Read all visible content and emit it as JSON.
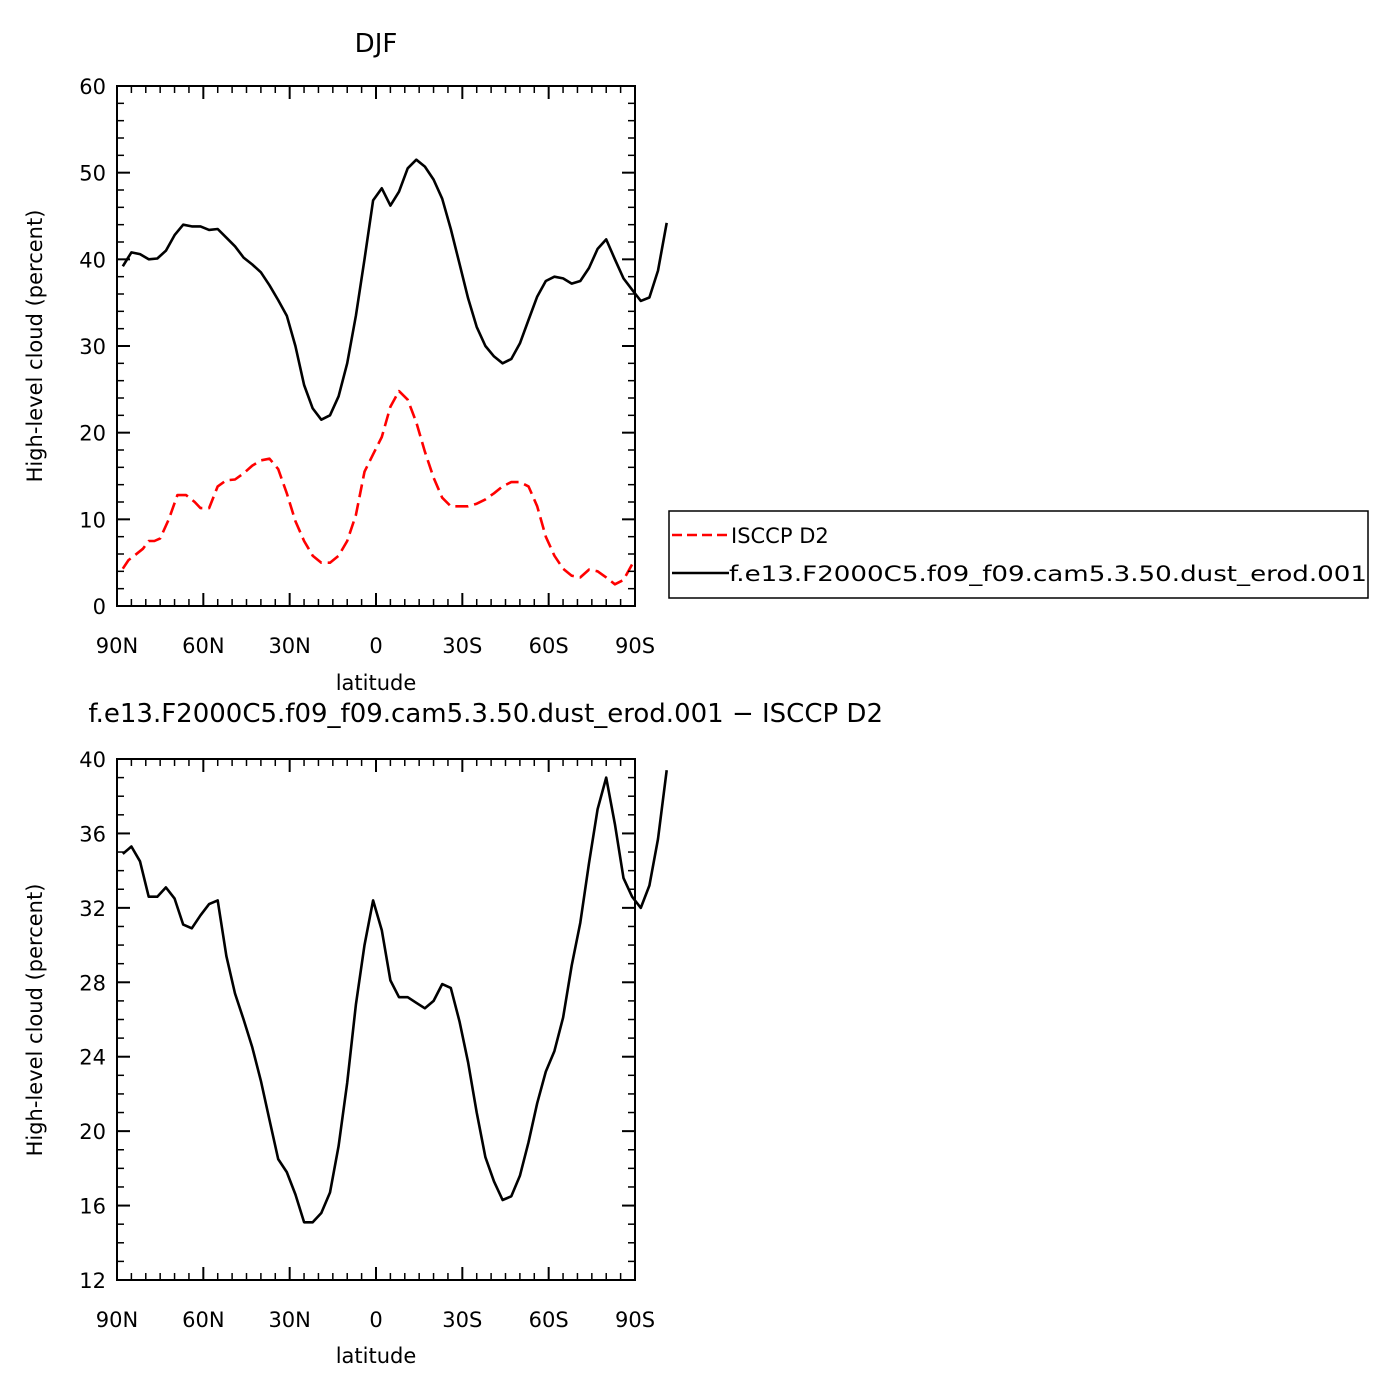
{
  "chart_data": [
    {
      "type": "line",
      "title": "DJF",
      "xlabel": "latitude",
      "ylabel": "High-level cloud (percent)",
      "xlim": [
        -90,
        90
      ],
      "ylim": [
        0,
        60
      ],
      "xticks": [
        {
          "v": -90,
          "label": "90N"
        },
        {
          "v": -60,
          "label": "60N"
        },
        {
          "v": -30,
          "label": "30N"
        },
        {
          "v": 0,
          "label": "0"
        },
        {
          "v": 30,
          "label": "30S"
        },
        {
          "v": 60,
          "label": "60S"
        },
        {
          "v": 90,
          "label": "90S"
        }
      ],
      "yticks": [
        {
          "v": 0,
          "label": "0"
        },
        {
          "v": 10,
          "label": "10"
        },
        {
          "v": 20,
          "label": "20"
        },
        {
          "v": 30,
          "label": "30"
        },
        {
          "v": 40,
          "label": "40"
        },
        {
          "v": 50,
          "label": "50"
        },
        {
          "v": 60,
          "label": "60"
        }
      ],
      "legend_position": "right",
      "series": [
        {
          "name": "ISCCP D2",
          "color": "#ff0000",
          "dash": "dashed",
          "points": [
            [
              -88,
              4.3
            ],
            [
              -86,
              5.3
            ],
            [
              -84,
              5.8
            ],
            [
              -81,
              6.6
            ],
            [
              -79,
              7.5
            ],
            [
              -77,
              7.5
            ],
            [
              -75,
              7.8
            ],
            [
              -72,
              10.0
            ],
            [
              -69,
              12.8
            ],
            [
              -66,
              12.8
            ],
            [
              -63,
              12.0
            ],
            [
              -61,
              11.3
            ],
            [
              -58,
              11.3
            ],
            [
              -55,
              13.8
            ],
            [
              -52,
              14.5
            ],
            [
              -49,
              14.6
            ],
            [
              -46,
              15.3
            ],
            [
              -43,
              16.2
            ],
            [
              -40,
              16.8
            ],
            [
              -37,
              17.0
            ],
            [
              -34,
              15.8
            ],
            [
              -31,
              13.0
            ],
            [
              -28,
              9.8
            ],
            [
              -25,
              7.5
            ],
            [
              -22,
              5.8
            ],
            [
              -19,
              5.0
            ],
            [
              -16,
              5.0
            ],
            [
              -13,
              5.8
            ],
            [
              -10,
              7.5
            ],
            [
              -7,
              10.5
            ],
            [
              -4,
              15.5
            ],
            [
              -1,
              17.5
            ],
            [
              2,
              19.5
            ],
            [
              5,
              23.0
            ],
            [
              8,
              24.8
            ],
            [
              11,
              23.8
            ],
            [
              14,
              21.2
            ],
            [
              17,
              17.8
            ],
            [
              20,
              14.8
            ],
            [
              23,
              12.5
            ],
            [
              26,
              11.5
            ],
            [
              29,
              11.5
            ],
            [
              32,
              11.5
            ],
            [
              35,
              11.8
            ],
            [
              38,
              12.3
            ],
            [
              41,
              13.0
            ],
            [
              44,
              13.8
            ],
            [
              47,
              14.3
            ],
            [
              50,
              14.3
            ],
            [
              53,
              13.8
            ],
            [
              56,
              11.5
            ],
            [
              59,
              8.0
            ],
            [
              62,
              5.8
            ],
            [
              65,
              4.3
            ],
            [
              68,
              3.5
            ],
            [
              71,
              3.3
            ],
            [
              74,
              4.2
            ],
            [
              77,
              4.0
            ],
            [
              80,
              3.3
            ],
            [
              83,
              2.5
            ],
            [
              86,
              3.0
            ],
            [
              89,
              4.8
            ]
          ]
        },
        {
          "name": "f.e13.F2000C5.f09_f09.cam5.3.50.dust_erod.001",
          "color": "#000000",
          "dash": "solid",
          "points": [
            [
              -88,
              39.2
            ],
            [
              -85,
              40.8
            ],
            [
              -82,
              40.6
            ],
            [
              -79,
              40.0
            ],
            [
              -76,
              40.1
            ],
            [
              -73,
              41.0
            ],
            [
              -70,
              42.8
            ],
            [
              -67,
              44.0
            ],
            [
              -64,
              43.8
            ],
            [
              -61,
              43.8
            ],
            [
              -58,
              43.4
            ],
            [
              -55,
              43.5
            ],
            [
              -52,
              42.5
            ],
            [
              -49,
              41.5
            ],
            [
              -46,
              40.2
            ],
            [
              -43,
              39.4
            ],
            [
              -40,
              38.5
            ],
            [
              -37,
              37.0
            ],
            [
              -34,
              35.3
            ],
            [
              -31,
              33.5
            ],
            [
              -28,
              30.0
            ],
            [
              -25,
              25.5
            ],
            [
              -22,
              22.8
            ],
            [
              -19,
              21.5
            ],
            [
              -16,
              22.0
            ],
            [
              -13,
              24.2
            ],
            [
              -10,
              28.0
            ],
            [
              -7,
              33.5
            ],
            [
              -4,
              40.0
            ],
            [
              -1,
              46.8
            ],
            [
              2,
              48.2
            ],
            [
              5,
              46.2
            ],
            [
              8,
              47.8
            ],
            [
              11,
              50.5
            ],
            [
              14,
              51.5
            ],
            [
              17,
              50.7
            ],
            [
              20,
              49.2
            ],
            [
              23,
              47.0
            ],
            [
              26,
              43.5
            ],
            [
              29,
              39.5
            ],
            [
              32,
              35.5
            ],
            [
              35,
              32.2
            ],
            [
              38,
              30.0
            ],
            [
              41,
              28.8
            ],
            [
              44,
              28.0
            ],
            [
              47,
              28.5
            ],
            [
              50,
              30.3
            ],
            [
              53,
              33.0
            ],
            [
              56,
              35.7
            ],
            [
              59,
              37.5
            ],
            [
              62,
              38.0
            ],
            [
              65,
              37.8
            ],
            [
              68,
              37.2
            ],
            [
              71,
              37.5
            ],
            [
              74,
              39.0
            ],
            [
              77,
              41.2
            ],
            [
              80,
              42.3
            ],
            [
              83,
              40.0
            ],
            [
              86,
              37.8
            ],
            [
              89,
              36.5
            ],
            [
              92,
              35.2
            ],
            [
              95,
              35.6
            ],
            [
              98,
              38.7
            ],
            [
              101,
              44.2
            ]
          ]
        }
      ]
    },
    {
      "type": "line",
      "title": "f.e13.F2000C5.f09_f09.cam5.3.50.dust_erod.001 − ISCCP D2",
      "xlabel": "latitude",
      "ylabel": "High-level cloud (percent)",
      "xlim": [
        -90,
        90
      ],
      "ylim": [
        12,
        40
      ],
      "xticks": [
        {
          "v": -90,
          "label": "90N"
        },
        {
          "v": -60,
          "label": "60N"
        },
        {
          "v": -30,
          "label": "30N"
        },
        {
          "v": 0,
          "label": "0"
        },
        {
          "v": 30,
          "label": "30S"
        },
        {
          "v": 60,
          "label": "60S"
        },
        {
          "v": 90,
          "label": "90S"
        }
      ],
      "yticks": [
        {
          "v": 12,
          "label": "12"
        },
        {
          "v": 16,
          "label": "16"
        },
        {
          "v": 20,
          "label": "20"
        },
        {
          "v": 24,
          "label": "24"
        },
        {
          "v": 28,
          "label": "28"
        },
        {
          "v": 32,
          "label": "32"
        },
        {
          "v": 36,
          "label": "36"
        },
        {
          "v": 40,
          "label": "40"
        }
      ],
      "series": [
        {
          "color": "#000000",
          "dash": "solid",
          "points": [
            [
              -88,
              34.9
            ],
            [
              -85,
              35.3
            ],
            [
              -82,
              34.5
            ],
            [
              -79,
              32.6
            ],
            [
              -76,
              32.6
            ],
            [
              -73,
              33.1
            ],
            [
              -70,
              32.5
            ],
            [
              -67,
              31.1
            ],
            [
              -64,
              30.9
            ],
            [
              -61,
              31.6
            ],
            [
              -58,
              32.2
            ],
            [
              -55,
              32.4
            ],
            [
              -52,
              29.4
            ],
            [
              -49,
              27.4
            ],
            [
              -46,
              26.0
            ],
            [
              -43,
              24.5
            ],
            [
              -40,
              22.7
            ],
            [
              -37,
              20.6
            ],
            [
              -34,
              18.5
            ],
            [
              -31,
              17.8
            ],
            [
              -28,
              16.6
            ],
            [
              -25,
              15.1
            ],
            [
              -22,
              15.1
            ],
            [
              -19,
              15.6
            ],
            [
              -16,
              16.7
            ],
            [
              -13,
              19.2
            ],
            [
              -10,
              22.6
            ],
            [
              -7,
              26.8
            ],
            [
              -4,
              30.0
            ],
            [
              -1,
              32.4
            ],
            [
              2,
              30.8
            ],
            [
              5,
              28.1
            ],
            [
              8,
              27.2
            ],
            [
              11,
              27.2
            ],
            [
              14,
              26.9
            ],
            [
              17,
              26.6
            ],
            [
              20,
              27.0
            ],
            [
              23,
              27.9
            ],
            [
              26,
              27.7
            ],
            [
              29,
              25.9
            ],
            [
              32,
              23.7
            ],
            [
              35,
              21.0
            ],
            [
              38,
              18.6
            ],
            [
              41,
              17.3
            ],
            [
              44,
              16.3
            ],
            [
              47,
              16.5
            ],
            [
              50,
              17.6
            ],
            [
              53,
              19.4
            ],
            [
              56,
              21.5
            ],
            [
              59,
              23.2
            ],
            [
              62,
              24.3
            ],
            [
              65,
              26.1
            ],
            [
              68,
              28.9
            ],
            [
              71,
              31.2
            ],
            [
              74,
              34.4
            ],
            [
              77,
              37.3
            ],
            [
              80,
              39.0
            ],
            [
              83,
              36.5
            ],
            [
              86,
              33.6
            ],
            [
              89,
              32.6
            ],
            [
              92,
              32.0
            ],
            [
              95,
              33.2
            ],
            [
              98,
              35.7
            ],
            [
              101,
              39.4
            ]
          ]
        }
      ]
    }
  ]
}
